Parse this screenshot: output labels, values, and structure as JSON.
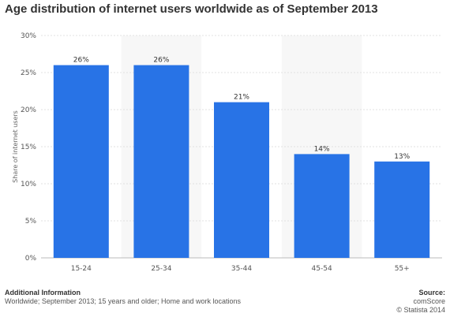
{
  "title": "Age distribution of internet users worldwide as of September 2013",
  "colors": {
    "bar": "#2873e6",
    "band": "#f7f7f7",
    "grid": "#e2e2e2",
    "axis": "#bbbbbb"
  },
  "chart_data": {
    "type": "bar",
    "categories": [
      "15-24",
      "25-34",
      "35-44",
      "45-54",
      "55+"
    ],
    "values": [
      26,
      26,
      21,
      14,
      13
    ],
    "data_labels": [
      "26%",
      "26%",
      "21%",
      "14%",
      "13%"
    ],
    "ylabel": "Share of internet users",
    "ylim": [
      0,
      30
    ],
    "yticks": [
      0,
      5,
      10,
      15,
      20,
      25,
      30
    ],
    "ytick_labels": [
      "0%",
      "5%",
      "10%",
      "15%",
      "20%",
      "25%",
      "30%"
    ],
    "grid": true
  },
  "footer": {
    "additional_title": "Additional Information",
    "additional_text": "Worldwide; September 2013; 15 years and older; Home and work locations",
    "source_title": "Source:",
    "source_name": "comScore",
    "copyright": "© Statista 2014"
  }
}
